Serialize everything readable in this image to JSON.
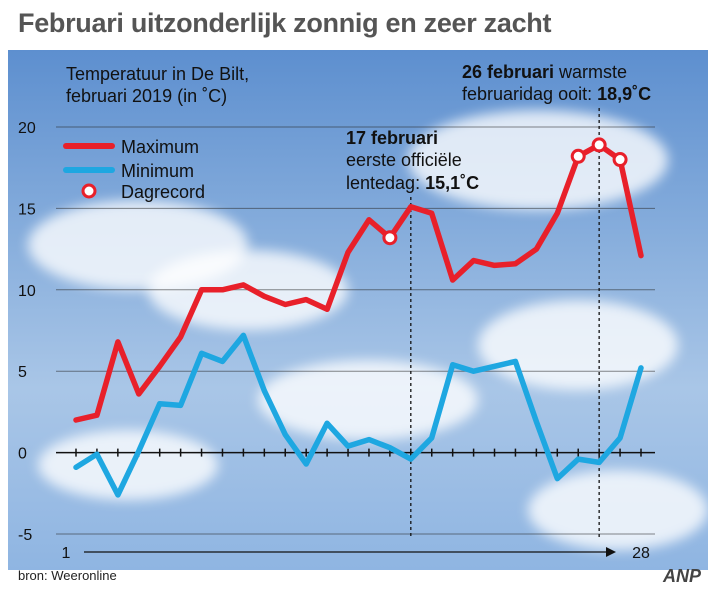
{
  "header": {
    "title": "Februari uitzonderlijk zonnig en zeer zacht"
  },
  "footer": {
    "source": "bron: Weeronline",
    "brand": "ANP"
  },
  "chart_data": {
    "type": "line",
    "title": "Temperatuur in De Bilt,",
    "subtitle": "februari 2019 (in ˚C)",
    "xlabel": "",
    "ylabel": "",
    "xlim": [
      1,
      28
    ],
    "ylim": [
      -5,
      20
    ],
    "y_ticks": [
      20,
      15,
      10,
      5,
      0,
      -5
    ],
    "x_tick_labels": [
      "1",
      "28"
    ],
    "grid": true,
    "legend_position": "top-left",
    "colors": {
      "maximum": "#e8202a",
      "minimum": "#1ea7e1",
      "record": "#e8202a"
    },
    "x": [
      1,
      2,
      3,
      4,
      5,
      6,
      7,
      8,
      9,
      10,
      11,
      12,
      13,
      14,
      15,
      16,
      17,
      18,
      19,
      20,
      21,
      22,
      23,
      24,
      25,
      26,
      27,
      28
    ],
    "series": [
      {
        "name": "Maximum",
        "values": [
          2.0,
          2.3,
          6.8,
          3.6,
          5.3,
          7.1,
          10.0,
          10.0,
          10.3,
          9.6,
          9.1,
          9.4,
          8.8,
          12.3,
          14.3,
          13.2,
          15.1,
          14.7,
          10.6,
          11.8,
          11.5,
          11.6,
          12.5,
          14.7,
          18.2,
          18.9,
          18.0,
          12.1
        ]
      },
      {
        "name": "Minimum",
        "values": [
          -0.9,
          -0.1,
          -2.6,
          0.1,
          3.0,
          2.9,
          6.1,
          5.6,
          7.2,
          3.8,
          1.1,
          -0.7,
          1.8,
          0.4,
          0.8,
          0.3,
          -0.4,
          0.9,
          5.4,
          5.0,
          5.3,
          5.6,
          1.9,
          -1.6,
          -0.4,
          -0.6,
          0.9,
          5.2
        ]
      }
    ],
    "records": {
      "name": "Dagrecord",
      "days": [
        16,
        25,
        26,
        27
      ],
      "values": [
        13.2,
        18.2,
        18.9,
        18.0
      ]
    },
    "annotations": [
      {
        "day": 17,
        "title": "17 februari",
        "line1": "eerste officiële",
        "line2_prefix": "lentedag: ",
        "line2_value": "15,1˚C"
      },
      {
        "day": 26,
        "title": "26 februari",
        "title_suffix": " warmste",
        "line2_prefix": "februaridag ooit: ",
        "line2_value": "18,9˚C"
      }
    ]
  }
}
